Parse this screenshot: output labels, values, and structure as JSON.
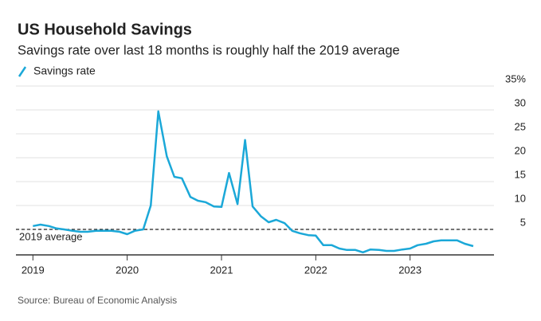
{
  "chart_data": {
    "type": "line",
    "title": "US Household Savings",
    "subtitle": "Savings rate over last 18 months is roughly half the 2019 average",
    "source": "Source: Bureau of Economic Analysis",
    "x": [
      2019.0,
      2019.08,
      2019.17,
      2019.25,
      2019.33,
      2019.42,
      2019.5,
      2019.58,
      2019.67,
      2019.75,
      2019.83,
      2019.92,
      2020.0,
      2020.08,
      2020.17,
      2020.25,
      2020.33,
      2020.42,
      2020.5,
      2020.58,
      2020.67,
      2020.75,
      2020.83,
      2020.92,
      2021.0,
      2021.08,
      2021.17,
      2021.25,
      2021.33,
      2021.42,
      2021.5,
      2021.58,
      2021.67,
      2021.75,
      2021.83,
      2021.92,
      2022.0,
      2022.08,
      2022.17,
      2022.25,
      2022.33,
      2022.42,
      2022.5,
      2022.58,
      2022.67,
      2022.75,
      2022.83,
      2022.92,
      2023.0,
      2023.08,
      2023.17,
      2023.25,
      2023.33,
      2023.42,
      2023.5,
      2023.58,
      2023.67
    ],
    "series": [
      {
        "name": "Savings rate",
        "color": "#1ba8d8",
        "values": [
          5.7,
          6,
          5.7,
          5.2,
          5,
          4.7,
          4.5,
          4.5,
          4.7,
          4.7,
          4.7,
          4.5,
          4,
          4.7,
          5,
          10,
          29.7,
          20.3,
          16,
          15.7,
          11.8,
          11,
          10.7,
          9.8,
          9.7,
          16.8,
          10.3,
          23.7,
          9.8,
          7.7,
          6.5,
          7,
          6.3,
          4.7,
          4.2,
          3.8,
          3.7,
          1.7,
          1.7,
          1,
          0.7,
          0.7,
          0.2,
          0.8,
          0.7,
          0.5,
          0.5,
          0.8,
          1,
          1.7,
          2,
          2.5,
          2.7,
          2.7,
          2.7,
          2,
          1.5
        ]
      }
    ],
    "average": 5,
    "average_label": "2019 average",
    "xlim": [
      2018.82,
      2023.89
    ],
    "xticks": [
      2019,
      2020,
      2021,
      2022,
      2023
    ],
    "ylim": [
      0,
      35
    ],
    "yticks": [
      {
        "value": 35,
        "label": "35%"
      },
      30,
      25,
      20,
      15,
      10,
      5
    ],
    "grid": true
  }
}
